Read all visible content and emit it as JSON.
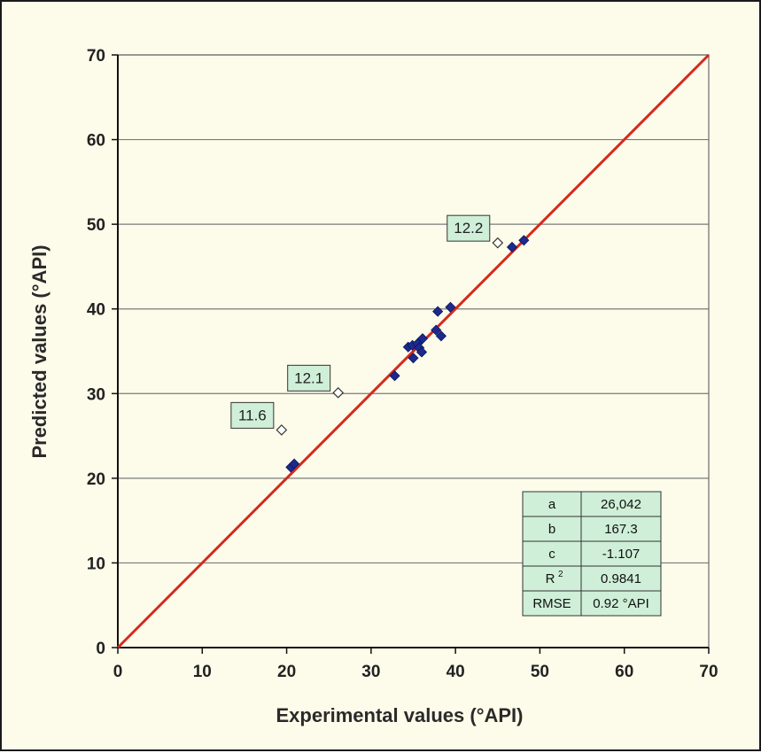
{
  "chart_data": {
    "type": "scatter",
    "title": "",
    "xlabel": "Experimental values (°API)",
    "ylabel": "Predicted values (°API)",
    "xlim": [
      0,
      70
    ],
    "ylim": [
      0,
      70
    ],
    "xticks": [
      "0",
      "10",
      "20",
      "30",
      "40",
      "50",
      "60",
      "70"
    ],
    "yticks": [
      "0",
      "10",
      "20",
      "30",
      "40",
      "50",
      "60",
      "70"
    ],
    "grid": "horizontal",
    "reference_line": {
      "x": [
        0,
        70
      ],
      "y": [
        0,
        70
      ],
      "color": "#d42a1e"
    },
    "series": [
      {
        "marker": "filled-diamond",
        "color": "#1c2a8c",
        "points": [
          [
            20.5,
            21.3
          ],
          [
            20.9,
            21.7
          ],
          [
            32.8,
            32.1
          ],
          [
            34.4,
            35.5
          ],
          [
            34.9,
            35.7
          ],
          [
            35.0,
            34.2
          ],
          [
            35.5,
            35.9
          ],
          [
            35.7,
            35.4
          ],
          [
            36.1,
            36.5
          ],
          [
            36.0,
            34.9
          ],
          [
            37.7,
            37.5
          ],
          [
            37.9,
            39.7
          ],
          [
            38.3,
            36.8
          ],
          [
            39.4,
            40.2
          ],
          [
            46.7,
            47.3
          ],
          [
            48.1,
            48.1
          ]
        ]
      },
      {
        "marker": "open-diamond",
        "color": "#ffffff",
        "points": [
          [
            19.4,
            25.7
          ],
          [
            26.1,
            30.1
          ],
          [
            45.0,
            47.8
          ]
        ],
        "labels": [
          "11.6",
          "12.1",
          "12.2"
        ]
      }
    ],
    "table": {
      "rows": [
        {
          "name": "a",
          "value": "26,042"
        },
        {
          "name": "b",
          "value": "167.3"
        },
        {
          "name": "c",
          "value": "-1.107"
        },
        {
          "name": "R",
          "sup": "2",
          "value": "0.9841"
        },
        {
          "name": "RMSE",
          "value": "0.92 °API"
        }
      ]
    },
    "colors": {
      "frame_background": "#fdfcea",
      "plot_background": "#fdfcea",
      "gridline": "#7a7a7a",
      "reference_line": "#d42a1e",
      "filled_marker": "#1c2a8c",
      "callout_fill": "#cfefd8",
      "table_fill": "#cfefd8"
    }
  }
}
